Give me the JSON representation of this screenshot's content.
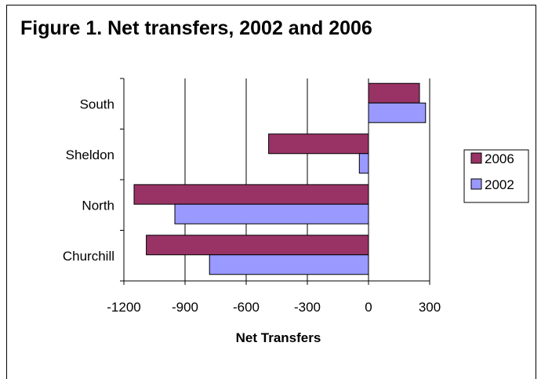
{
  "chart_data": {
    "type": "bar",
    "orientation": "horizontal",
    "title": "Figure 1. Net transfers, 2002 and 2006",
    "xlabel": "Net Transfers",
    "ylabel": "",
    "categories": [
      "South",
      "Sheldon",
      "North",
      "Churchill"
    ],
    "series": [
      {
        "name": "2006",
        "values": [
          250,
          -490,
          -1150,
          -1090
        ],
        "color": "#993366"
      },
      {
        "name": "2002",
        "values": [
          280,
          -45,
          -950,
          -780
        ],
        "color": "#9999FF"
      }
    ],
    "xlim": [
      -1200,
      300
    ],
    "xticks": [
      -1200,
      -900,
      -600,
      -300,
      0,
      300
    ],
    "xtick_labels": [
      "-1200",
      "-900",
      "-600",
      "-300",
      "0",
      "300"
    ],
    "grid": "vertical",
    "legend_position": "right"
  }
}
